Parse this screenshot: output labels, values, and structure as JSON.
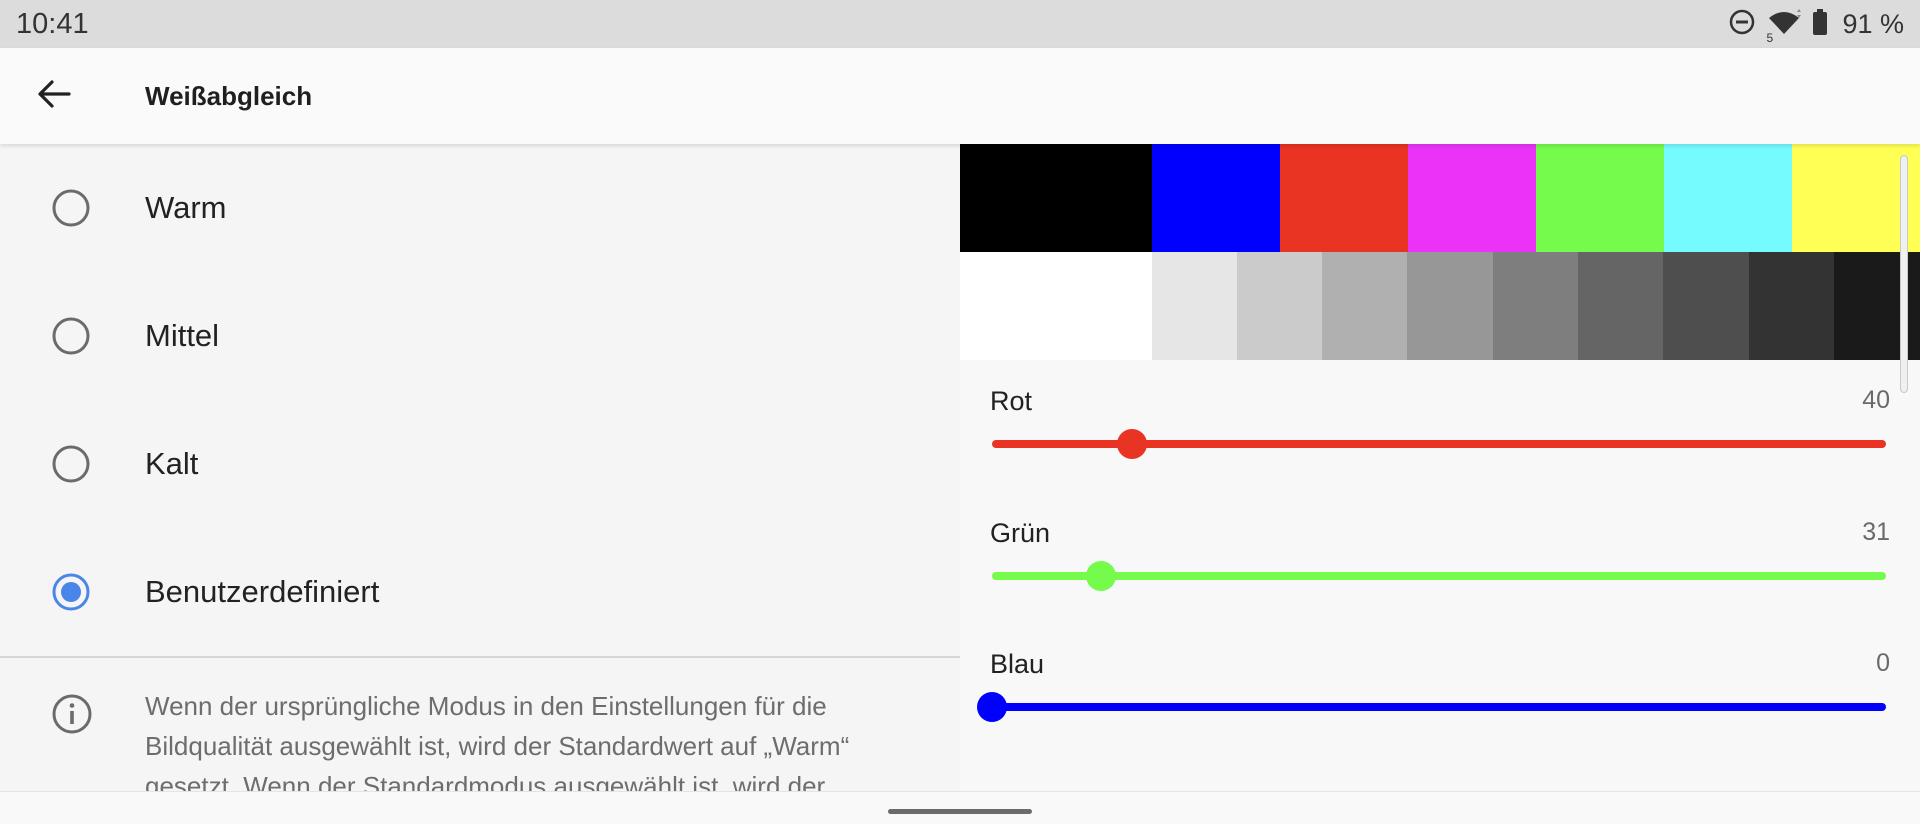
{
  "status_bar": {
    "time": "10:41",
    "battery_text": "91 %",
    "icons": [
      "do-not-disturb-icon",
      "wifi-icon",
      "battery-icon"
    ],
    "wifi_badge": "5"
  },
  "app_bar": {
    "title": "Weißabgleich",
    "back_icon": "arrow-back-icon"
  },
  "options": [
    {
      "label": "Warm",
      "selected": false
    },
    {
      "label": "Mittel",
      "selected": false
    },
    {
      "label": "Kalt",
      "selected": false
    },
    {
      "label": "Benutzerdefiniert",
      "selected": true
    }
  ],
  "info": {
    "icon": "info-icon",
    "text": "Wenn der ursprüngliche Modus in den Einstellungen für die Bildqualität ausgewählt ist, wird der Standardwert auf „Warm“ gesetzt. Wenn der Standardmodus ausgewählt ist, wird der"
  },
  "color_swatches": [
    "#000000",
    "#0000ff",
    "#e93323",
    "#ea33f7",
    "#75fb4c",
    "#75fbfd",
    "#ffff54"
  ],
  "gray_swatches": [
    "#ffffff",
    "#e6e6e6",
    "#cbcbcb",
    "#b0b0b0",
    "#979797",
    "#7e7e7e",
    "#656565",
    "#4e4e4e",
    "#333333",
    "#1a1a1a"
  ],
  "sliders": [
    {
      "label": "Rot",
      "value": "40",
      "level": 40,
      "max": 255,
      "color": "#e93323"
    },
    {
      "label": "Grün",
      "value": "31",
      "level": 31,
      "max": 255,
      "color": "#75fb4c"
    },
    {
      "label": "Blau",
      "value": "0",
      "level": 0,
      "max": 255,
      "color": "#0000ff"
    }
  ],
  "accent_color": "#4a86e8"
}
